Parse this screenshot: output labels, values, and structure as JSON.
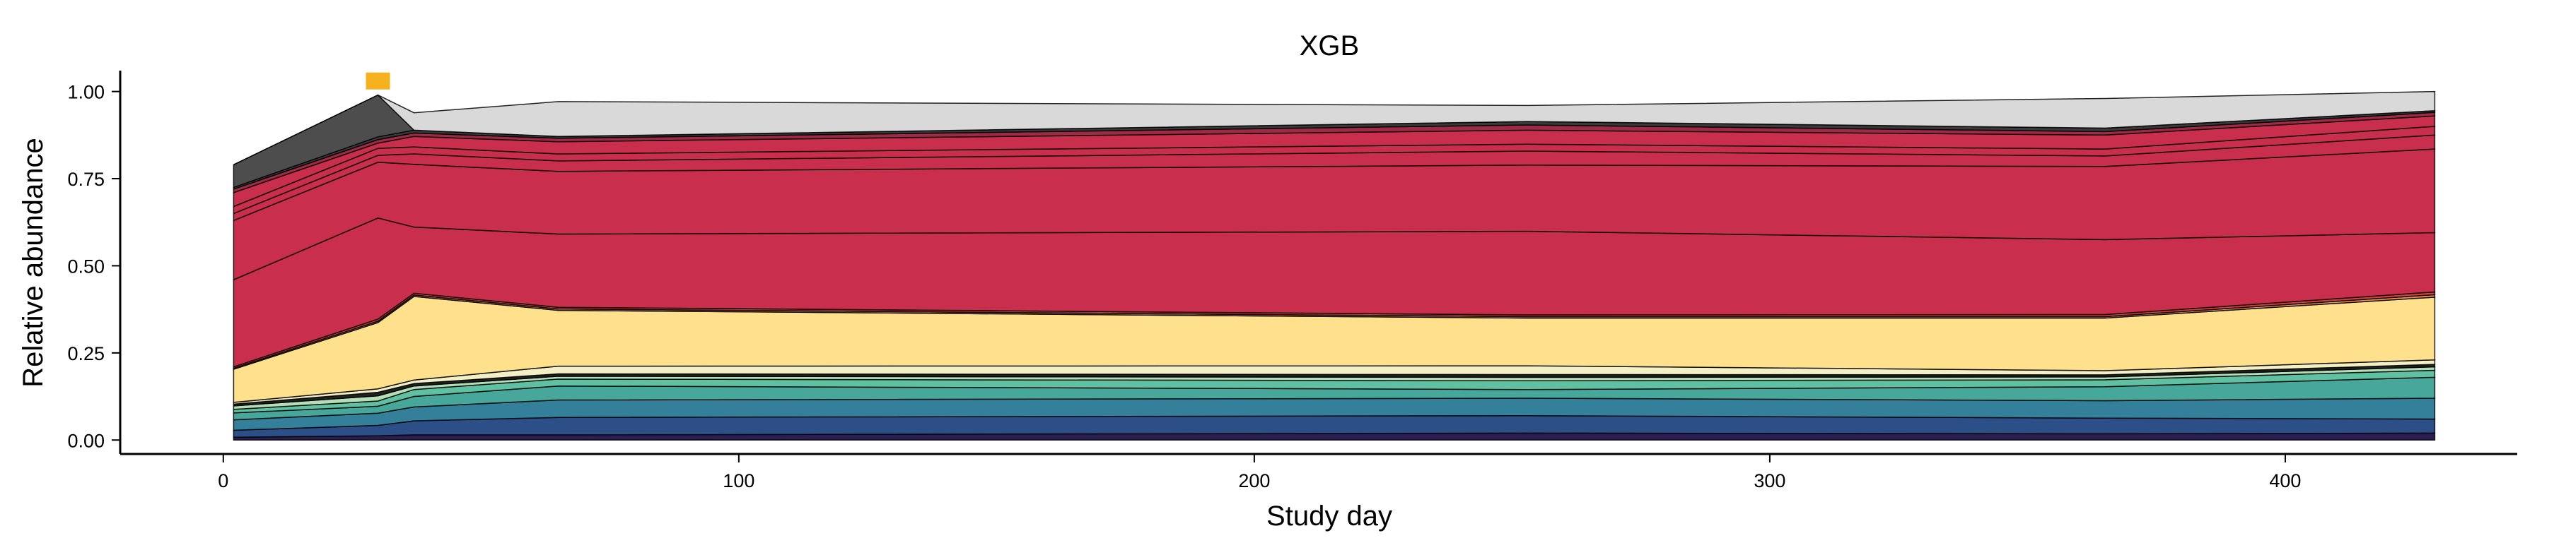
{
  "chart_data": {
    "type": "area",
    "stacked": true,
    "title": "XGB",
    "xlabel": "Study day",
    "ylabel": "Relative abundance",
    "xlim": [
      -20,
      445
    ],
    "ylim": [
      -0.04,
      1.06
    ],
    "xticks": [
      0,
      100,
      200,
      300,
      400
    ],
    "yticks": [
      0,
      0.25,
      0.5,
      0.75,
      1
    ],
    "ytick_labels": [
      "0.00",
      "0.25",
      "0.50",
      "0.75",
      "1.00"
    ],
    "grid": false,
    "x": [
      2,
      30,
      37,
      65,
      253,
      365,
      429
    ],
    "series": [
      {
        "color": "#2a1d52",
        "values": [
          0.008,
          0.012,
          0.015,
          0.015,
          0.02,
          0.018,
          0.02
        ]
      },
      {
        "color": "#2d4f88",
        "values": [
          0.02,
          0.03,
          0.04,
          0.05,
          0.05,
          0.045,
          0.04
        ]
      },
      {
        "color": "#347f99",
        "values": [
          0.03,
          0.035,
          0.04,
          0.05,
          0.05,
          0.05,
          0.06
        ]
      },
      {
        "color": "#48a79b",
        "values": [
          0.02,
          0.02,
          0.03,
          0.04,
          0.025,
          0.04,
          0.06
        ]
      },
      {
        "color": "#5fc1a1",
        "values": [
          0.01,
          0.015,
          0.02,
          0.02,
          0.025,
          0.02,
          0.02
        ]
      },
      {
        "color": "#b2dfb8",
        "values": [
          0.01,
          0.015,
          0.01,
          0.008,
          0.01,
          0.008,
          0.01
        ]
      },
      {
        "color": "#222222",
        "values": [
          0.005,
          0.01,
          0.007,
          0.007,
          0.008,
          0.006,
          0.007
        ]
      },
      {
        "color": "#f3f0c5",
        "values": [
          0.005,
          0.01,
          0.01,
          0.022,
          0.025,
          0.012,
          0.013
        ]
      },
      {
        "color": "#ffe08c",
        "values": [
          0.095,
          0.19,
          0.24,
          0.16,
          0.137,
          0.151,
          0.18
        ]
      },
      {
        "color": "#e9944e",
        "values": [
          0.003,
          0.004,
          0.004,
          0.004,
          0.004,
          0.004,
          0.007
        ]
      },
      {
        "color": "#d3403f",
        "values": [
          0.004,
          0.006,
          0.005,
          0.005,
          0.005,
          0.006,
          0.008
        ]
      },
      {
        "color": "#c92f4c",
        "values": [
          0.25,
          0.29,
          0.19,
          0.21,
          0.24,
          0.215,
          0.17
        ]
      },
      {
        "color": "#c92f4c",
        "values": [
          0.17,
          0.16,
          0.18,
          0.18,
          0.19,
          0.21,
          0.24
        ]
      },
      {
        "color": "#c92f4c",
        "values": [
          0.02,
          0.02,
          0.03,
          0.03,
          0.04,
          0.03,
          0.04
        ]
      },
      {
        "color": "#c92f4c",
        "values": [
          0.02,
          0.02,
          0.02,
          0.02,
          0.02,
          0.02,
          0.025
        ]
      },
      {
        "color": "#c92f4c",
        "values": [
          0.04,
          0.015,
          0.03,
          0.035,
          0.04,
          0.04,
          0.03
        ]
      },
      {
        "color": "#9e2a45",
        "values": [
          0.01,
          0.01,
          0.01,
          0.01,
          0.015,
          0.01,
          0.01
        ]
      },
      {
        "color": "#3a3a3a",
        "values": [
          0.005,
          0.008,
          0.008,
          0.005,
          0.01,
          0.01,
          0.005
        ]
      },
      {
        "color": "#4d4d4d",
        "values": [
          0.065,
          0.12,
          0.0,
          0.0,
          0.0,
          0.0,
          0.0
        ]
      },
      {
        "color": "#d9d9d9",
        "values": [
          0.0,
          0.0,
          0.05,
          0.1,
          0.046,
          0.085,
          0.055
        ]
      }
    ],
    "markers": [
      {
        "x": 30,
        "y": 1.02,
        "shape": "square",
        "color": "#f5b21e"
      }
    ]
  }
}
